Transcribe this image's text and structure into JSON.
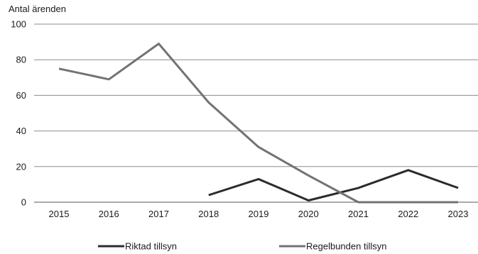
{
  "chart_data": {
    "type": "line",
    "ylabel": "Antal ärenden",
    "ylim": [
      0,
      100
    ],
    "yticks": [
      0,
      20,
      40,
      60,
      80,
      100
    ],
    "grid": true,
    "legend_position": "bottom",
    "x": [
      "2015",
      "2016",
      "2017",
      "2018",
      "2019",
      "2020",
      "2021",
      "2022",
      "2023"
    ],
    "series": [
      {
        "name": "Riktad tillsyn",
        "color": "#2b2b2b",
        "values": [
          null,
          null,
          null,
          4,
          13,
          1,
          8,
          18,
          8
        ]
      },
      {
        "name": "Regelbunden tillsyn",
        "color": "#737373",
        "values": [
          75,
          69,
          89,
          56,
          31,
          15,
          0,
          0,
          0
        ]
      }
    ]
  }
}
